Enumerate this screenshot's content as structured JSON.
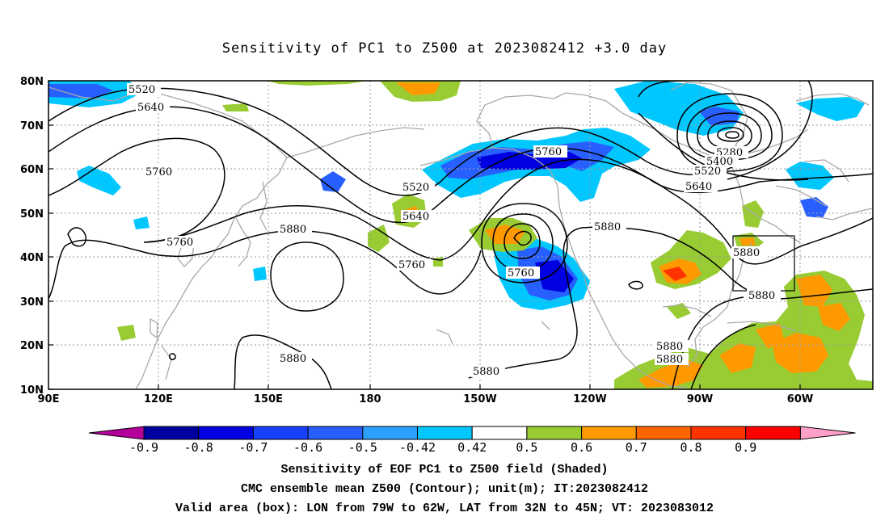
{
  "title": "Sensitivity of PC1 to Z500 at 2023082412 +3.0 day",
  "lat_labels": [
    "80N",
    "70N",
    "60N",
    "50N",
    "40N",
    "30N",
    "20N",
    "10N"
  ],
  "lon_labels": [
    "90E",
    "120E",
    "150E",
    "180",
    "150W",
    "120W",
    "90W",
    "60W"
  ],
  "contour_labels": [
    "5520",
    "5640",
    "5760",
    "5760",
    "5880",
    "5880",
    "5520",
    "5640",
    "5760",
    "5760",
    "5880",
    "5880",
    "5280",
    "5400",
    "5520",
    "5640",
    "5760",
    "5880",
    "5880",
    "5880",
    "5880"
  ],
  "colorbar": {
    "labels": [
      "-0.9",
      "-0.8",
      "-0.7",
      "-0.6",
      "-0.5",
      "-0.42",
      "0.42",
      "0.5",
      "0.6",
      "0.7",
      "0.8",
      "0.9"
    ],
    "colors": [
      "#b4009b",
      "#0000a0",
      "#0000e0",
      "#1840ff",
      "#2860ff",
      "#2ca0ff",
      "#00c8ff",
      "#ffffff",
      "#99cc33",
      "#ff9900",
      "#ff6600",
      "#ff3300",
      "#ff0000",
      "#ffa0c8"
    ]
  },
  "captions": [
    "Sensitivity of EOF PC1 to Z500 field (Shaded)",
    "CMC ensemble mean Z500 (Contour); unit(m); IT:2023082412",
    "Valid area (box): LON from 79W to 62W, LAT from 32N to 45N; VT: 2023083012"
  ]
}
